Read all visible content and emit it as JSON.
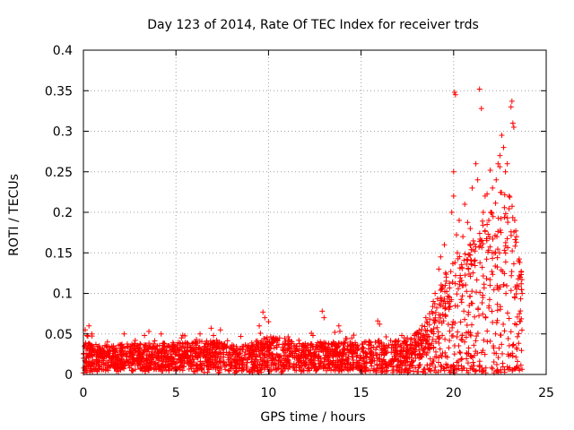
{
  "chart_data": {
    "type": "scatter",
    "title": "Day 123 of 2014, Rate Of TEC Index for receiver trds",
    "xlabel": "GPS time / hours",
    "ylabel": "ROTI / TECUs",
    "xlim": [
      0,
      25
    ],
    "ylim": [
      0,
      0.4
    ],
    "x_ticks": [
      0,
      5,
      10,
      15,
      20,
      25
    ],
    "x_tick_labels": [
      "0",
      "5",
      "10",
      "15",
      "20",
      "25"
    ],
    "y_ticks": [
      0,
      0.05,
      0.1,
      0.15,
      0.2,
      0.25,
      0.3,
      0.35,
      0.4
    ],
    "y_tick_labels": [
      "0",
      "0.05",
      "0.1",
      "0.15",
      "0.2",
      "0.25",
      "0.3",
      "0.35",
      "0.4"
    ],
    "grid": true,
    "marker": "plus",
    "color": "#ff0000",
    "series": [
      {
        "name": "ROTI",
        "envelope": [
          {
            "x": 0.0,
            "median": 0.022,
            "spread": 0.025
          },
          {
            "x": 1.0,
            "median": 0.02,
            "spread": 0.02
          },
          {
            "x": 3.0,
            "median": 0.021,
            "spread": 0.022
          },
          {
            "x": 5.0,
            "median": 0.022,
            "spread": 0.022
          },
          {
            "x": 7.0,
            "median": 0.022,
            "spread": 0.025
          },
          {
            "x": 8.5,
            "median": 0.018,
            "spread": 0.02
          },
          {
            "x": 10.0,
            "median": 0.025,
            "spread": 0.03
          },
          {
            "x": 12.0,
            "median": 0.022,
            "spread": 0.022
          },
          {
            "x": 14.0,
            "median": 0.022,
            "spread": 0.022
          },
          {
            "x": 16.0,
            "median": 0.022,
            "spread": 0.025
          },
          {
            "x": 17.5,
            "median": 0.022,
            "spread": 0.025
          },
          {
            "x": 18.5,
            "median": 0.03,
            "spread": 0.04
          },
          {
            "x": 19.0,
            "median": 0.05,
            "spread": 0.06
          },
          {
            "x": 19.5,
            "median": 0.06,
            "spread": 0.08
          },
          {
            "x": 20.0,
            "median": 0.06,
            "spread": 0.1
          },
          {
            "x": 20.5,
            "median": 0.07,
            "spread": 0.1
          },
          {
            "x": 21.0,
            "median": 0.07,
            "spread": 0.12
          },
          {
            "x": 21.5,
            "median": 0.08,
            "spread": 0.14
          },
          {
            "x": 22.0,
            "median": 0.09,
            "spread": 0.15
          },
          {
            "x": 22.5,
            "median": 0.09,
            "spread": 0.17
          },
          {
            "x": 23.0,
            "median": 0.09,
            "spread": 0.17
          },
          {
            "x": 23.4,
            "median": 0.08,
            "spread": 0.13
          },
          {
            "x": 23.7,
            "median": 0.07,
            "spread": 0.08
          }
        ],
        "points": [
          [
            0.0,
            0.002
          ],
          [
            0.05,
            0.035
          ],
          [
            0.1,
            0.055
          ],
          [
            0.15,
            0.015
          ],
          [
            0.2,
            0.048
          ],
          [
            0.3,
            0.06
          ],
          [
            0.4,
            0.01
          ],
          [
            0.45,
            0.05
          ],
          [
            0.5,
            0.03
          ],
          [
            0.7,
            0.018
          ],
          [
            1.0,
            0.025
          ],
          [
            1.3,
            0.04
          ],
          [
            1.5,
            0.02
          ],
          [
            2.0,
            0.012
          ],
          [
            2.2,
            0.05
          ],
          [
            2.5,
            0.028
          ],
          [
            2.8,
            0.042
          ],
          [
            3.0,
            0.02
          ],
          [
            3.3,
            0.048
          ],
          [
            3.6,
            0.015
          ],
          [
            4.0,
            0.03
          ],
          [
            4.2,
            0.05
          ],
          [
            4.5,
            0.02
          ],
          [
            4.8,
            0.035
          ],
          [
            5.0,
            0.025
          ],
          [
            5.3,
            0.045
          ],
          [
            5.7,
            0.012
          ],
          [
            6.0,
            0.032
          ],
          [
            6.3,
            0.05
          ],
          [
            6.6,
            0.028
          ],
          [
            6.9,
            0.057
          ],
          [
            7.2,
            0.042
          ],
          [
            7.4,
            0.055
          ],
          [
            7.6,
            0.015
          ],
          [
            8.0,
            0.022
          ],
          [
            8.5,
            0.047
          ],
          [
            8.8,
            0.01
          ],
          [
            9.2,
            0.03
          ],
          [
            9.5,
            0.06
          ],
          [
            9.7,
            0.077
          ],
          [
            9.8,
            0.07
          ],
          [
            10.0,
            0.065
          ],
          [
            10.2,
            0.02
          ],
          [
            10.6,
            0.045
          ],
          [
            11.0,
            0.015
          ],
          [
            11.5,
            0.035
          ],
          [
            12.0,
            0.025
          ],
          [
            12.4,
            0.048
          ],
          [
            12.9,
            0.078
          ],
          [
            13.0,
            0.07
          ],
          [
            13.5,
            0.04
          ],
          [
            13.8,
            0.06
          ],
          [
            14.0,
            0.03
          ],
          [
            14.5,
            0.045
          ],
          [
            15.0,
            0.02
          ],
          [
            15.5,
            0.04
          ],
          [
            15.9,
            0.066
          ],
          [
            16.0,
            0.062
          ],
          [
            16.5,
            0.015
          ],
          [
            17.0,
            0.035
          ],
          [
            17.5,
            0.045
          ],
          [
            18.0,
            0.05
          ],
          [
            18.3,
            0.06
          ],
          [
            18.5,
            0.07
          ],
          [
            18.7,
            0.075
          ],
          [
            18.9,
            0.09
          ],
          [
            19.0,
            0.1
          ],
          [
            19.2,
            0.13
          ],
          [
            19.3,
            0.145
          ],
          [
            19.5,
            0.16
          ],
          [
            19.6,
            0.12
          ],
          [
            19.8,
            0.09
          ],
          [
            19.9,
            0.2
          ],
          [
            20.0,
            0.22
          ],
          [
            20.0,
            0.25
          ],
          [
            20.05,
            0.348
          ],
          [
            20.1,
            0.345
          ],
          [
            20.2,
            0.15
          ],
          [
            20.3,
            0.19
          ],
          [
            20.5,
            0.17
          ],
          [
            20.6,
            0.21
          ],
          [
            20.8,
            0.13
          ],
          [
            20.9,
            0.18
          ],
          [
            21.0,
            0.23
          ],
          [
            21.2,
            0.26
          ],
          [
            21.3,
            0.24
          ],
          [
            21.4,
            0.352
          ],
          [
            21.5,
            0.328
          ],
          [
            21.6,
            0.2
          ],
          [
            21.7,
            0.22
          ],
          [
            21.9,
            0.19
          ],
          [
            22.0,
            0.2
          ],
          [
            22.1,
            0.23
          ],
          [
            22.3,
            0.24
          ],
          [
            22.4,
            0.26
          ],
          [
            22.5,
            0.27
          ],
          [
            22.6,
            0.295
          ],
          [
            22.7,
            0.28
          ],
          [
            22.8,
            0.25
          ],
          [
            22.9,
            0.26
          ],
          [
            23.0,
            0.22
          ],
          [
            23.1,
            0.33
          ],
          [
            23.15,
            0.337
          ],
          [
            23.2,
            0.31
          ],
          [
            23.25,
            0.305
          ],
          [
            23.3,
            0.19
          ],
          [
            23.4,
            0.17
          ],
          [
            23.5,
            0.14
          ],
          [
            23.6,
            0.12
          ],
          [
            23.7,
            0.1
          ]
        ]
      }
    ]
  }
}
